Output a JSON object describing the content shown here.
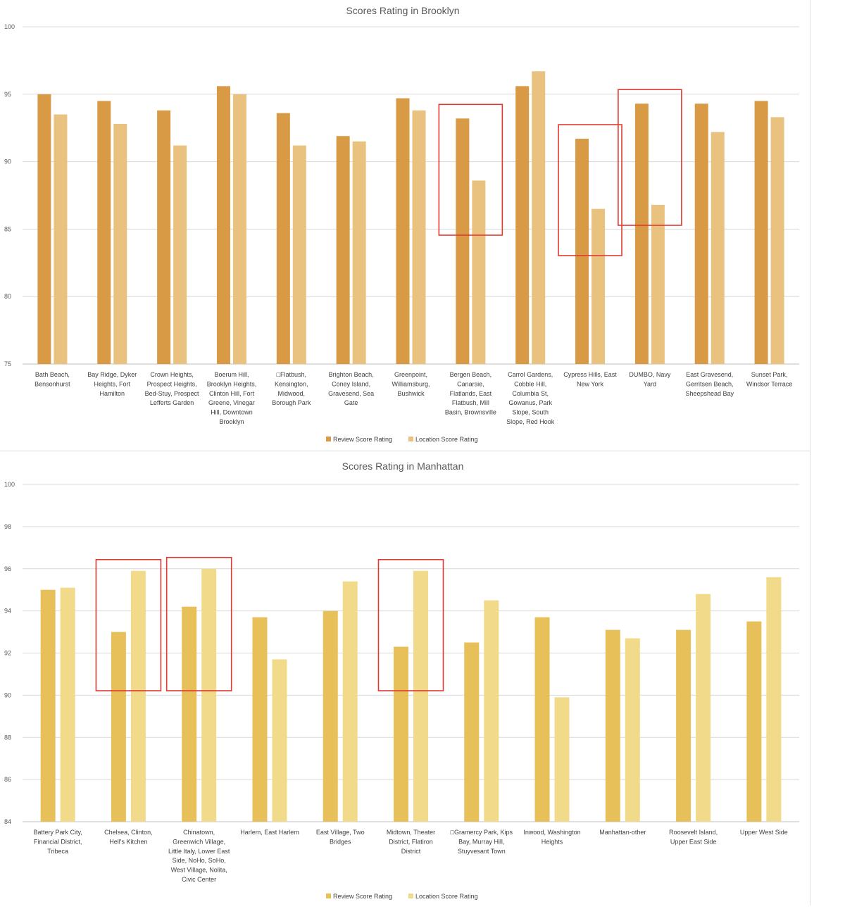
{
  "charts": {
    "brooklyn": {
      "chart_data": {
        "type": "bar",
        "title": "Scores Rating in Brooklyn",
        "ylim": [
          75,
          100
        ],
        "yticks": [
          75,
          80,
          85,
          90,
          95,
          100
        ],
        "grid": true,
        "legend": "bottom-center",
        "categories": [
          [
            "Bath Beach,",
            "Bensonhurst"
          ],
          [
            "Bay Ridge, Dyker",
            "Heights, Fort",
            "Hamilton"
          ],
          [
            "Crown Heights,",
            "Prospect Heights,",
            "Bed-Stuy, Prospect",
            "Lefferts Garden"
          ],
          [
            "Boerum Hill,",
            "Brooklyn Heights,",
            "Clinton Hill, Fort",
            "Greene, Vinegar",
            "Hill, Downtown",
            "Brooklyn"
          ],
          [
            "□Flatbush,",
            "Kensington,",
            "Midwood,",
            "Borough Park"
          ],
          [
            "Brighton Beach,",
            "Coney Island,",
            "Gravesend, Sea",
            "Gate"
          ],
          [
            "Greenpoint,",
            "Williamsburg,",
            "Bushwick"
          ],
          [
            "Bergen Beach,",
            "Canarsie,",
            "Flatlands, East",
            "Flatbush, Mill",
            "Basin, Brownsville"
          ],
          [
            "Carrol Gardens,",
            "Cobble Hill,",
            "Columbia St,",
            "Gowanus, Park",
            "Slope, South",
            "Slope, Red Hook"
          ],
          [
            "Cypress Hills, East",
            "New York"
          ],
          [
            "DUMBO, Navy",
            "Yard"
          ],
          [
            "East Gravesend,",
            "Gerritsen Beach,",
            "Sheepshead Bay"
          ],
          [
            "Sunset Park,",
            "Windsor Terrace"
          ]
        ],
        "series": [
          {
            "name": "Review Score Rating",
            "color": "#D99A45",
            "values": [
              95.0,
              94.5,
              93.8,
              95.6,
              93.6,
              91.9,
              94.7,
              93.2,
              95.6,
              91.7,
              94.3,
              94.3,
              94.5
            ]
          },
          {
            "name": "Location Score Rating",
            "color": "#EAC27F",
            "values": [
              93.5,
              92.8,
              91.2,
              95.0,
              91.2,
              91.5,
              93.8,
              88.6,
              96.7,
              86.5,
              86.8,
              92.2,
              93.3
            ]
          }
        ],
        "highlighted_categories": [
          7,
          9,
          10
        ],
        "highlight_color": "#E03A32"
      }
    },
    "manhattan": {
      "chart_data": {
        "type": "bar",
        "title": "Scores Rating in Manhattan",
        "ylim": [
          84,
          100
        ],
        "yticks": [
          84,
          86,
          88,
          90,
          92,
          94,
          96,
          98,
          100
        ],
        "grid": true,
        "legend": "bottom-center",
        "categories": [
          [
            "Battery Park City,",
            "Financial District,",
            "Tribeca"
          ],
          [
            "Chelsea, Clinton,",
            "Hell's Kitchen"
          ],
          [
            "Chinatown,",
            "Greenwich Village,",
            "Little Italy, Lower East",
            "Side, NoHo, SoHo,",
            "West Village, Nolita,",
            "Civic Center"
          ],
          [
            "Harlem, East Harlem"
          ],
          [
            "East Village, Two",
            "Bridges"
          ],
          [
            "Midtown, Theater",
            "District, Flatiron",
            "District"
          ],
          [
            "□Gramercy Park, Kips",
            "Bay, Murray Hill,",
            "Stuyvesant Town"
          ],
          [
            "Inwood, Washington",
            "Heights"
          ],
          [
            "Manhattan-other"
          ],
          [
            "Roosevelt Island,",
            "Upper East Side"
          ],
          [
            "Upper West Side"
          ]
        ],
        "series": [
          {
            "name": "Review Score Rating",
            "color": "#E8C05A",
            "values": [
              95.0,
              93.0,
              94.2,
              93.7,
              94.0,
              92.3,
              92.5,
              93.7,
              93.1,
              93.1,
              93.5
            ]
          },
          {
            "name": "Location Score Rating",
            "color": "#F1DB8B",
            "values": [
              95.1,
              95.9,
              96.0,
              91.7,
              95.4,
              95.9,
              94.5,
              89.9,
              92.7,
              94.8,
              95.6
            ]
          }
        ],
        "highlighted_categories": [
          1,
          2,
          5
        ],
        "highlight_color": "#E03A32"
      }
    }
  }
}
